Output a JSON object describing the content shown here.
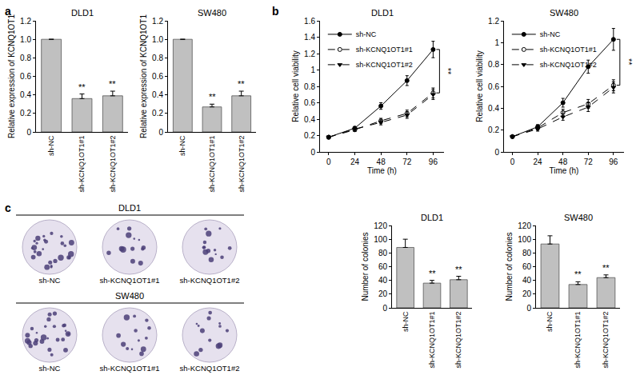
{
  "panel_labels": [
    "a",
    "b",
    "c"
  ],
  "colony_images": [
    {
      "title": "DLD1",
      "labels": [
        "sh-NC",
        "sh-KCNQ1OT1#1",
        "sh-KCNQ1OT1#2"
      ]
    },
    {
      "title": "SW480",
      "labels": [
        "sh-NC",
        "sh-KCNQ1OT1#1",
        "sh-KCNQ1OT1#2"
      ]
    }
  ],
  "chart_data": [
    {
      "type": "bar",
      "title": "DLD1",
      "y_label": "Relative expression of KCNQ1OT1",
      "categories": [
        "sh-NC",
        "sh-KCNQ1OT1#1",
        "sh-KCNQ1OT1#2"
      ],
      "values": [
        1,
        0.36,
        0.39
      ],
      "errors": [
        0,
        0.05,
        0.05
      ],
      "color": "#c0c0c0",
      "ylim": [
        0,
        1.2
      ],
      "yticks": [
        0,
        0.2,
        0.4,
        0.6,
        0.8,
        {
          "value": 1,
          "label": "1.0"
        },
        1.2
      ],
      "grid": false,
      "annotations": [
        {
          "category": "sh-KCNQ1OT1#1",
          "text": "**"
        },
        {
          "category": "sh-KCNQ1OT1#2",
          "text": "**"
        }
      ]
    },
    {
      "type": "bar",
      "title": "SW480",
      "y_label": "Relative expression of KCNQ1OT1",
      "categories": [
        "sh-NC",
        "sh-KCNQ1OT1#1",
        "sh-KCNQ1OT1#2"
      ],
      "values": [
        1,
        0.27,
        0.39
      ],
      "errors": [
        0,
        0.03,
        0.05
      ],
      "color": "#c0c0c0",
      "ylim": [
        0,
        1.2
      ],
      "yticks": [
        0,
        0.2,
        0.4,
        0.6,
        0.8,
        {
          "value": 1,
          "label": "1.0"
        },
        1.2
      ],
      "grid": false,
      "annotations": [
        {
          "category": "sh-KCNQ1OT1#1",
          "text": "**"
        },
        {
          "category": "sh-KCNQ1OT1#2",
          "text": "**"
        }
      ]
    },
    {
      "type": "line",
      "title": "DLD1",
      "x_label": "Time (h)",
      "y_label": "Relative cell viability",
      "x": [
        0,
        24,
        48,
        72,
        96
      ],
      "series": [
        {
          "name": "sh-NC",
          "color": "#000000",
          "marker": "circle",
          "line_style": "solid",
          "values": [
            0.18,
            0.29,
            0.56,
            0.87,
            1.25
          ],
          "errors": [
            0.02,
            0.02,
            0.04,
            0.06,
            0.1
          ]
        },
        {
          "name": "sh-KCNQ1OT1#1",
          "color": "#000000",
          "marker": "circle-open",
          "line_style": "dash",
          "values": [
            0.18,
            0.27,
            0.38,
            0.47,
            0.72
          ],
          "errors": [
            0.02,
            0.02,
            0.03,
            0.04,
            0.06
          ]
        },
        {
          "name": "sh-KCNQ1OT1#2",
          "color": "#000000",
          "marker": "triangle-down",
          "line_style": "dash",
          "values": [
            0.18,
            0.28,
            0.36,
            0.45,
            0.7
          ],
          "errors": [
            0.02,
            0.02,
            0.03,
            0.04,
            0.06
          ]
        }
      ],
      "xlim": [
        -8,
        106
      ],
      "xticks": [
        0,
        24,
        48,
        72,
        96
      ],
      "ylim": [
        0,
        1.6
      ],
      "yticks": [
        0,
        0.2,
        0.4,
        0.6,
        0.8,
        1,
        1.2,
        1.4,
        1.6
      ],
      "grid": false,
      "legend": "upper left",
      "annotations": [
        {
          "x": 96,
          "text": "**"
        }
      ]
    },
    {
      "type": "line",
      "title": "SW480",
      "x_label": "Time (h)",
      "y_label": "Relative cell viability",
      "x": [
        0,
        24,
        48,
        72,
        96
      ],
      "series": [
        {
          "name": "sh-NC",
          "color": "#000000",
          "marker": "circle",
          "line_style": "solid",
          "values": [
            0.14,
            0.23,
            0.45,
            0.78,
            1.03
          ],
          "errors": [
            0.01,
            0.02,
            0.04,
            0.06,
            0.1
          ]
        },
        {
          "name": "sh-KCNQ1OT1#1",
          "color": "#000000",
          "marker": "circle-open",
          "line_style": "dash",
          "values": [
            0.14,
            0.22,
            0.36,
            0.44,
            0.61
          ],
          "errors": [
            0.01,
            0.02,
            0.03,
            0.04,
            0.05
          ]
        },
        {
          "name": "sh-KCNQ1OT1#2",
          "color": "#000000",
          "marker": "triangle-down",
          "line_style": "dash",
          "values": [
            0.14,
            0.21,
            0.32,
            0.41,
            0.59
          ],
          "errors": [
            0.01,
            0.02,
            0.03,
            0.04,
            0.05
          ]
        }
      ],
      "xlim": [
        -8,
        106
      ],
      "xticks": [
        0,
        24,
        48,
        72,
        96
      ],
      "ylim": [
        0,
        1.2
      ],
      "yticks": [
        0,
        0.2,
        0.4,
        0.6,
        0.8,
        1,
        1.2
      ],
      "grid": false,
      "legend": "upper left",
      "annotations": [
        {
          "x": 96,
          "text": "**"
        }
      ]
    },
    {
      "type": "bar",
      "title": "DLD1",
      "y_label": "Number of colonies",
      "categories": [
        "sh-NC",
        "sh-KCNQ1OT1#1",
        "sh-KCNQ1OT1#2"
      ],
      "values": [
        88,
        36,
        41
      ],
      "errors": [
        12,
        4,
        5
      ],
      "color": "#c0c0c0",
      "ylim": [
        0,
        120
      ],
      "yticks": [
        0,
        20,
        40,
        60,
        80,
        100,
        120
      ],
      "grid": false,
      "annotations": [
        {
          "category": "sh-KCNQ1OT1#1",
          "text": "**"
        },
        {
          "category": "sh-KCNQ1OT1#2",
          "text": "**"
        }
      ]
    },
    {
      "type": "bar",
      "title": "SW480",
      "y_label": "Number of colonies",
      "categories": [
        "sh-NC",
        "sh-KCNQ1OT1#1",
        "sh-KCNQ1OT1#2"
      ],
      "values": [
        93,
        34,
        44
      ],
      "errors": [
        12,
        4,
        4
      ],
      "color": "#c0c0c0",
      "ylim": [
        0,
        120
      ],
      "yticks": [
        0,
        20,
        40,
        60,
        80,
        100,
        120
      ],
      "grid": false,
      "annotations": [
        {
          "category": "sh-KCNQ1OT1#1",
          "text": "**"
        },
        {
          "category": "sh-KCNQ1OT1#2",
          "text": "**"
        }
      ]
    }
  ]
}
